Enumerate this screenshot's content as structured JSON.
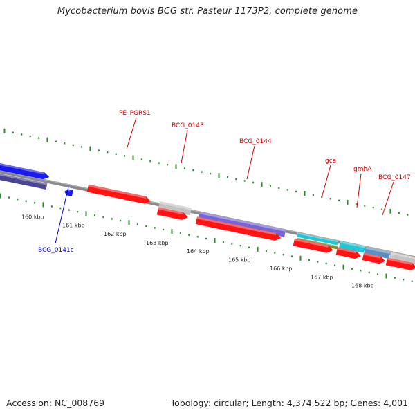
{
  "title": "Mycobacterium bovis BCG str. Pasteur 1173P2, complete genome",
  "accession_text": "Accession: NC_008769",
  "stats_text": "Topology: circular; Length: 4,374,522 bp; Genes: 4,001",
  "colors": {
    "backbone": "#8a8a8a",
    "tick": "#2a8a2a",
    "forward_label": "#cc0000",
    "reverse_label": "#0000cc",
    "cds_red": "#ff1414",
    "pseudo_gray": "#c4c4c4",
    "trna_purple": "#7765d6",
    "blue": "#1a1aee",
    "dark_purple": "#4a4494",
    "cyan": "#21c6d4",
    "olive": "#7c8f2a",
    "steel": "#5a8fc4"
  },
  "scale_labels": [
    "160 kbp",
    "161 kbp",
    "162 kbp",
    "163 kbp",
    "164 kbp",
    "165 kbp",
    "166 kbp",
    "167 kbp",
    "168 kbp"
  ],
  "gene_labels": [
    {
      "name": "PE_PGRS1",
      "strand": "forward"
    },
    {
      "name": "BCG_0143",
      "strand": "forward"
    },
    {
      "name": "BCG_0144",
      "strand": "forward"
    },
    {
      "name": "gca",
      "strand": "forward"
    },
    {
      "name": "gmhA",
      "strand": "forward"
    },
    {
      "name": "BCG_0147",
      "strand": "forward"
    },
    {
      "name": "BCG_0141c",
      "strand": "reverse"
    }
  ]
}
